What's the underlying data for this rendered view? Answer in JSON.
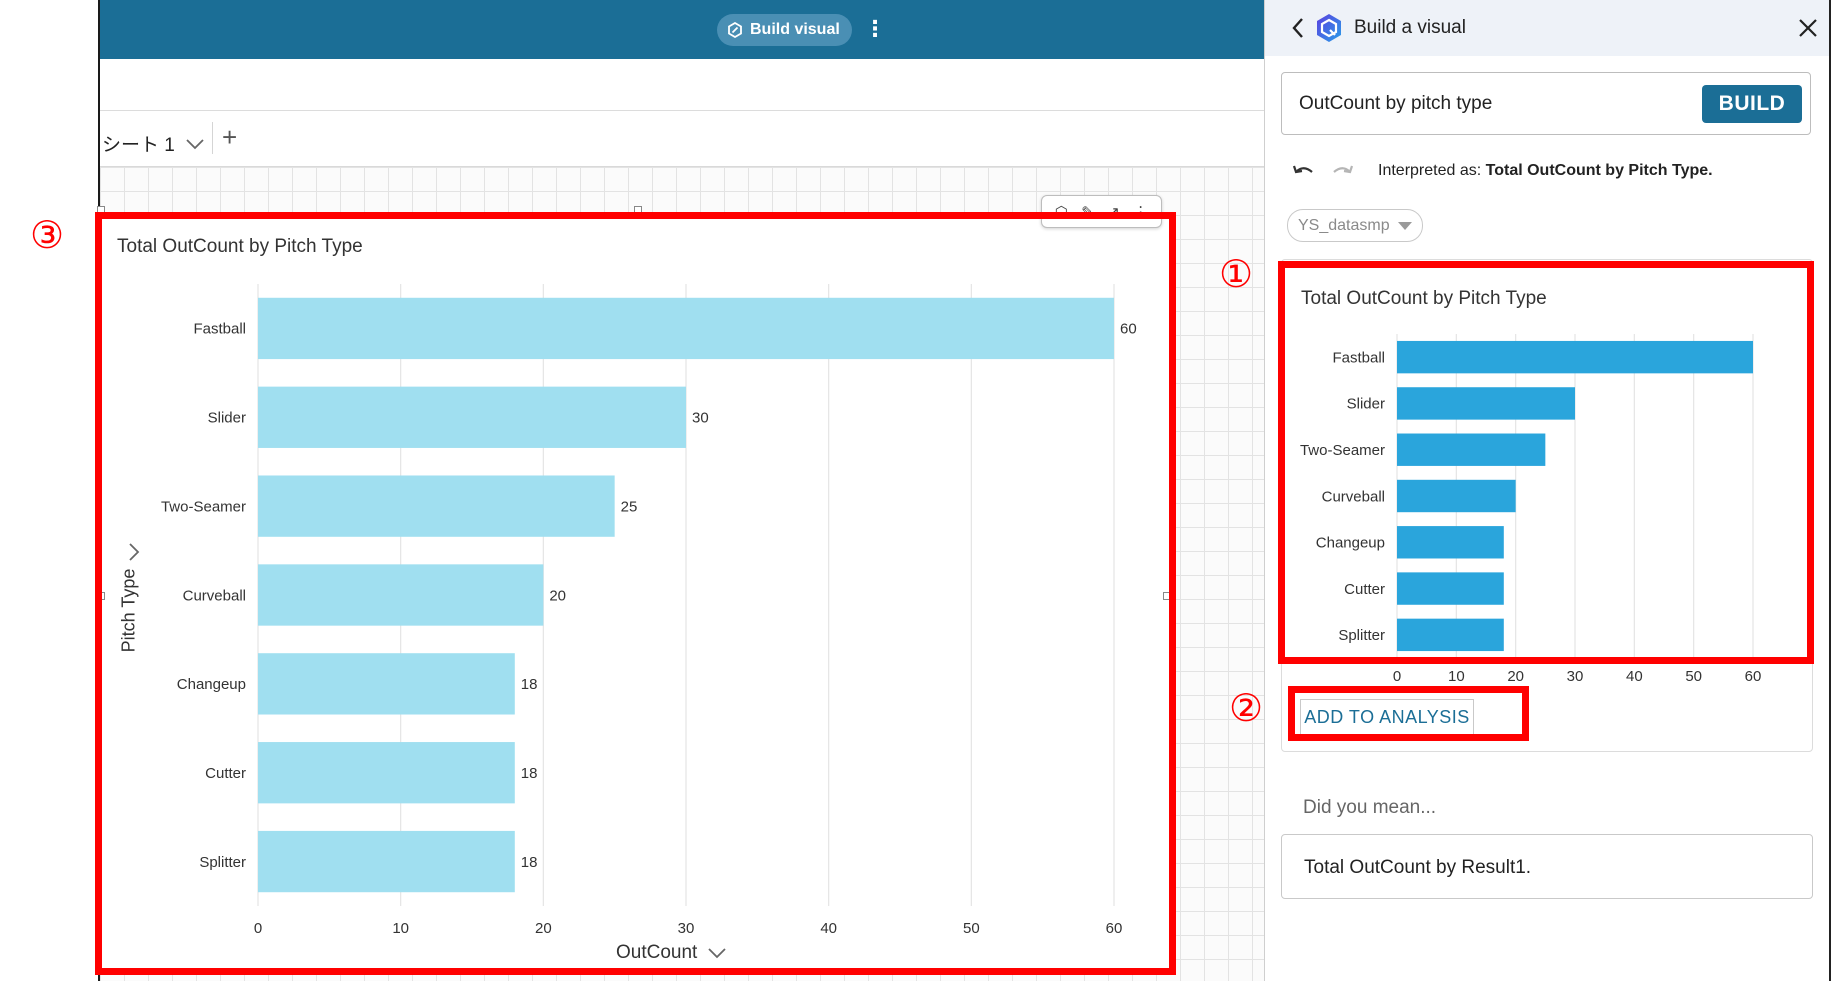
{
  "topbar": {
    "build_visual_label": "Build visual",
    "more_icon": "kebab-icon"
  },
  "sheet": {
    "tab_label": "シート 1",
    "add_icon": "plus-icon"
  },
  "main_visual": {
    "title": "Total OutCount by Pitch Type",
    "y_axis_title": "Pitch Type",
    "x_axis_title": "OutCount",
    "toolbar_icons": [
      "layers-icon",
      "edit-icon",
      "expand-icon",
      "kebab-icon"
    ]
  },
  "panel": {
    "title": "Build a visual",
    "query_value": "OutCount by pitch type",
    "build_label": "BUILD",
    "interpreted_prefix": "Interpreted as: ",
    "interpreted_value": "Total OutCount by Pitch Type.",
    "dataset": "YS_datasmp",
    "preview_title": "Total OutCount by Pitch Type",
    "add_to_analysis_label": "ADD TO ANALYSIS",
    "did_you_mean": "Did you mean...",
    "suggestion": "Total OutCount by Result1."
  },
  "callouts": {
    "one": "①",
    "two": "②",
    "three": "③"
  },
  "colors": {
    "topbar": "#1b6e96",
    "main_bar": "#a0dff0",
    "preview_bar": "#2aa5dc",
    "annotation": "#ff0000"
  },
  "chart_data": [
    {
      "type": "bar",
      "orientation": "horizontal",
      "title": "Total OutCount by Pitch Type",
      "xlabel": "OutCount",
      "ylabel": "Pitch Type",
      "categories": [
        "Fastball",
        "Slider",
        "Two-Seamer",
        "Curveball",
        "Changeup",
        "Cutter",
        "Splitter"
      ],
      "values": [
        60,
        30,
        25,
        20,
        18,
        18,
        18
      ],
      "xlim": [
        0,
        60
      ],
      "ticks": [
        0,
        10,
        20,
        30,
        40,
        50,
        60
      ],
      "data_labels": true,
      "grid": true
    },
    {
      "type": "bar",
      "orientation": "horizontal",
      "title": "Total OutCount by Pitch Type",
      "categories": [
        "Fastball",
        "Slider",
        "Two-Seamer",
        "Curveball",
        "Changeup",
        "Cutter",
        "Splitter"
      ],
      "values": [
        60,
        30,
        25,
        20,
        18,
        18,
        18
      ],
      "xlim": [
        0,
        60
      ],
      "ticks": [
        0,
        10,
        20,
        30,
        40,
        50,
        60
      ],
      "data_labels": false,
      "grid": true
    }
  ]
}
